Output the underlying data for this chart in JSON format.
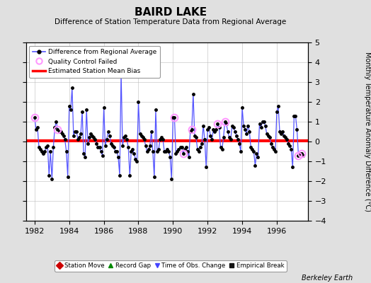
{
  "title": "BAIRD LAKE",
  "subtitle": "Difference of Station Temperature Data from Regional Average",
  "ylabel": "Monthly Temperature Anomaly Difference (°C)",
  "xlabel_credit": "Berkeley Earth",
  "xlim": [
    1981.5,
    1997.8
  ],
  "ylim": [
    -4,
    5
  ],
  "yticks": [
    -4,
    -3,
    -2,
    -1,
    0,
    1,
    2,
    3,
    4,
    5
  ],
  "xticks": [
    1982,
    1984,
    1986,
    1988,
    1990,
    1992,
    1994,
    1996
  ],
  "bias_value": 0.05,
  "background_color": "#e0e0e0",
  "plot_bg_color": "#ffffff",
  "line_color": "#5555ff",
  "dot_color": "#000000",
  "bias_color": "#ff0000",
  "qc_color": "#ff99ff",
  "data": [
    [
      1982.0,
      1.2
    ],
    [
      1982.083,
      0.6
    ],
    [
      1982.167,
      0.7
    ],
    [
      1982.25,
      -0.3
    ],
    [
      1982.333,
      -0.4
    ],
    [
      1982.417,
      -0.5
    ],
    [
      1982.5,
      -0.6
    ],
    [
      1982.583,
      -0.5
    ],
    [
      1982.667,
      -0.3
    ],
    [
      1982.75,
      -0.2
    ],
    [
      1982.833,
      -1.7
    ],
    [
      1982.917,
      -0.5
    ],
    [
      1983.0,
      -1.9
    ],
    [
      1983.083,
      -0.3
    ],
    [
      1983.167,
      0.7
    ],
    [
      1983.25,
      1.0
    ],
    [
      1983.333,
      0.6
    ],
    [
      1983.417,
      0.5
    ],
    [
      1983.5,
      0.5
    ],
    [
      1983.583,
      0.4
    ],
    [
      1983.667,
      0.3
    ],
    [
      1983.75,
      0.1
    ],
    [
      1983.833,
      -0.5
    ],
    [
      1983.917,
      -1.8
    ],
    [
      1984.0,
      1.8
    ],
    [
      1984.083,
      1.6
    ],
    [
      1984.167,
      2.7
    ],
    [
      1984.25,
      0.3
    ],
    [
      1984.333,
      0.5
    ],
    [
      1984.417,
      0.5
    ],
    [
      1984.5,
      0.1
    ],
    [
      1984.583,
      0.2
    ],
    [
      1984.667,
      0.4
    ],
    [
      1984.75,
      1.5
    ],
    [
      1984.833,
      -0.6
    ],
    [
      1984.917,
      -0.8
    ],
    [
      1985.0,
      1.6
    ],
    [
      1985.083,
      -0.1
    ],
    [
      1985.167,
      0.2
    ],
    [
      1985.25,
      0.4
    ],
    [
      1985.333,
      0.3
    ],
    [
      1985.417,
      0.2
    ],
    [
      1985.5,
      0.1
    ],
    [
      1985.583,
      -0.1
    ],
    [
      1985.667,
      -0.3
    ],
    [
      1985.75,
      -0.3
    ],
    [
      1985.833,
      -0.5
    ],
    [
      1985.917,
      -0.7
    ],
    [
      1986.0,
      1.7
    ],
    [
      1986.083,
      -0.2
    ],
    [
      1986.167,
      0.1
    ],
    [
      1986.25,
      0.5
    ],
    [
      1986.333,
      0.3
    ],
    [
      1986.417,
      -0.1
    ],
    [
      1986.5,
      -0.2
    ],
    [
      1986.583,
      -0.3
    ],
    [
      1986.667,
      -0.5
    ],
    [
      1986.75,
      -0.5
    ],
    [
      1986.833,
      -0.8
    ],
    [
      1986.917,
      -1.7
    ],
    [
      1987.0,
      3.5
    ],
    [
      1987.083,
      -0.2
    ],
    [
      1987.167,
      0.2
    ],
    [
      1987.25,
      0.3
    ],
    [
      1987.333,
      0.1
    ],
    [
      1987.417,
      -0.3
    ],
    [
      1987.5,
      -1.7
    ],
    [
      1987.583,
      -0.5
    ],
    [
      1987.667,
      -0.4
    ],
    [
      1987.75,
      -0.6
    ],
    [
      1987.833,
      -0.9
    ],
    [
      1987.917,
      -1.0
    ],
    [
      1988.0,
      2.0
    ],
    [
      1988.083,
      0.4
    ],
    [
      1988.167,
      0.3
    ],
    [
      1988.25,
      0.2
    ],
    [
      1988.333,
      0.1
    ],
    [
      1988.417,
      -0.2
    ],
    [
      1988.5,
      -0.5
    ],
    [
      1988.583,
      -0.4
    ],
    [
      1988.667,
      -0.2
    ],
    [
      1988.75,
      0.5
    ],
    [
      1988.833,
      -0.5
    ],
    [
      1988.917,
      -1.8
    ],
    [
      1989.0,
      1.6
    ],
    [
      1989.083,
      -0.5
    ],
    [
      1989.167,
      -0.4
    ],
    [
      1989.25,
      0.1
    ],
    [
      1989.333,
      0.2
    ],
    [
      1989.417,
      0.1
    ],
    [
      1989.5,
      -0.5
    ],
    [
      1989.583,
      -0.5
    ],
    [
      1989.667,
      -0.4
    ],
    [
      1989.75,
      -0.5
    ],
    [
      1989.833,
      -0.8
    ],
    [
      1989.917,
      -1.9
    ],
    [
      1990.0,
      1.2
    ],
    [
      1990.083,
      1.2
    ],
    [
      1990.167,
      -0.6
    ],
    [
      1990.25,
      -0.5
    ],
    [
      1990.333,
      -0.4
    ],
    [
      1990.417,
      -0.3
    ],
    [
      1990.5,
      -0.3
    ],
    [
      1990.583,
      -0.6
    ],
    [
      1990.667,
      -0.4
    ],
    [
      1990.75,
      -0.3
    ],
    [
      1990.833,
      -0.5
    ],
    [
      1990.917,
      -0.8
    ],
    [
      1991.0,
      0.5
    ],
    [
      1991.083,
      0.6
    ],
    [
      1991.167,
      2.4
    ],
    [
      1991.25,
      0.3
    ],
    [
      1991.333,
      0.2
    ],
    [
      1991.417,
      -0.4
    ],
    [
      1991.5,
      -0.5
    ],
    [
      1991.583,
      -0.3
    ],
    [
      1991.667,
      -0.1
    ],
    [
      1991.75,
      0.8
    ],
    [
      1991.833,
      0.1
    ],
    [
      1991.917,
      -1.3
    ],
    [
      1992.0,
      0.6
    ],
    [
      1992.083,
      0.7
    ],
    [
      1992.167,
      0.3
    ],
    [
      1992.25,
      0.1
    ],
    [
      1992.333,
      0.6
    ],
    [
      1992.417,
      0.5
    ],
    [
      1992.5,
      0.6
    ],
    [
      1992.583,
      0.9
    ],
    [
      1992.667,
      0.7
    ],
    [
      1992.75,
      -0.3
    ],
    [
      1992.833,
      -0.4
    ],
    [
      1992.917,
      0.2
    ],
    [
      1993.0,
      1.0
    ],
    [
      1993.083,
      0.9
    ],
    [
      1993.167,
      0.5
    ],
    [
      1993.25,
      0.2
    ],
    [
      1993.333,
      0.1
    ],
    [
      1993.417,
      0.8
    ],
    [
      1993.5,
      0.7
    ],
    [
      1993.583,
      0.5
    ],
    [
      1993.667,
      0.3
    ],
    [
      1993.75,
      0.1
    ],
    [
      1993.833,
      -0.1
    ],
    [
      1993.917,
      -0.5
    ],
    [
      1994.0,
      1.7
    ],
    [
      1994.083,
      0.8
    ],
    [
      1994.167,
      0.6
    ],
    [
      1994.25,
      0.4
    ],
    [
      1994.333,
      0.8
    ],
    [
      1994.417,
      0.5
    ],
    [
      1994.5,
      -0.3
    ],
    [
      1994.583,
      -0.4
    ],
    [
      1994.667,
      -0.5
    ],
    [
      1994.75,
      -1.2
    ],
    [
      1994.833,
      -0.6
    ],
    [
      1994.917,
      -0.8
    ],
    [
      1995.0,
      0.9
    ],
    [
      1995.083,
      0.7
    ],
    [
      1995.167,
      1.0
    ],
    [
      1995.25,
      1.0
    ],
    [
      1995.333,
      0.8
    ],
    [
      1995.417,
      0.4
    ],
    [
      1995.5,
      0.3
    ],
    [
      1995.583,
      0.2
    ],
    [
      1995.667,
      -0.1
    ],
    [
      1995.75,
      -0.3
    ],
    [
      1995.833,
      -0.4
    ],
    [
      1995.917,
      -0.5
    ],
    [
      1996.0,
      1.5
    ],
    [
      1996.083,
      1.8
    ],
    [
      1996.167,
      0.5
    ],
    [
      1996.25,
      0.4
    ],
    [
      1996.333,
      0.5
    ],
    [
      1996.417,
      0.3
    ],
    [
      1996.5,
      0.2
    ],
    [
      1996.583,
      0.1
    ],
    [
      1996.667,
      -0.1
    ],
    [
      1996.75,
      -0.2
    ],
    [
      1996.833,
      -0.4
    ],
    [
      1996.917,
      -1.3
    ],
    [
      1997.0,
      1.3
    ],
    [
      1997.083,
      1.3
    ],
    [
      1997.167,
      0.6
    ],
    [
      1997.25,
      -0.7
    ],
    [
      1997.333,
      -0.6
    ],
    [
      1997.417,
      -0.6
    ],
    [
      1997.5,
      -0.7
    ]
  ],
  "qc_failed": [
    1982.0,
    1983.333,
    1990.083,
    1990.583,
    1991.083,
    1992.583,
    1993.0,
    1997.25,
    1997.417
  ],
  "legend2_items": [
    {
      "label": "Station Move",
      "color": "#cc0000",
      "marker": "D"
    },
    {
      "label": "Record Gap",
      "color": "#008800",
      "marker": "^"
    },
    {
      "label": "Time of Obs. Change",
      "color": "#4444ff",
      "marker": "v"
    },
    {
      "label": "Empirical Break",
      "color": "#111111",
      "marker": "s"
    }
  ]
}
